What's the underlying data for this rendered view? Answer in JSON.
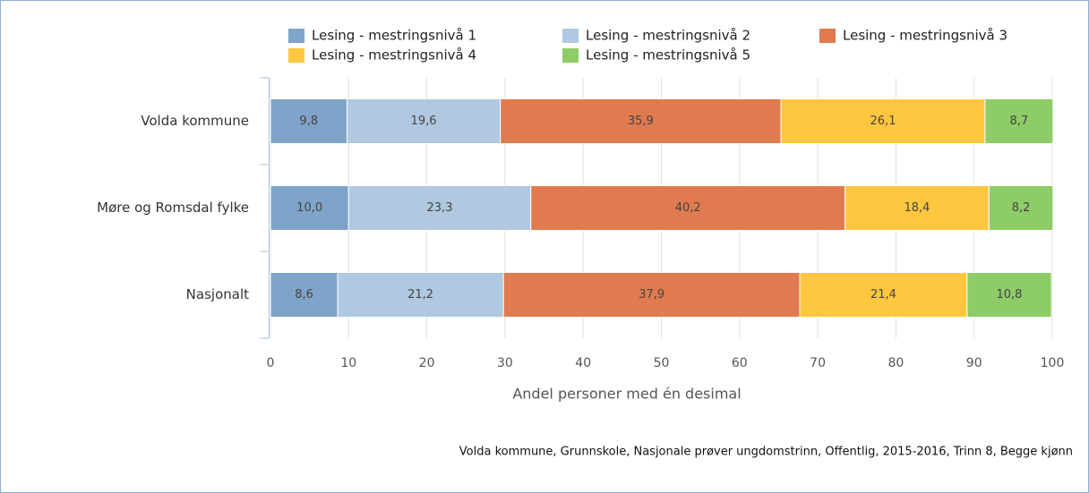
{
  "chart_data": {
    "type": "stacked-bar-horizontal",
    "categories": [
      "Volda kommune",
      "Møre og Romsdal fylke",
      "Nasjonalt"
    ],
    "series": [
      {
        "name": "Lesing - mestringsnivå 1",
        "color": "#7fa3c9",
        "values": [
          9.8,
          10.0,
          8.6
        ],
        "value_labels": [
          "9,8",
          "10,0",
          "8,6"
        ]
      },
      {
        "name": "Lesing - mestringsnivå 2",
        "color": "#b0c8e0",
        "values": [
          19.6,
          23.3,
          21.2
        ],
        "value_labels": [
          "19,6",
          "23,3",
          "21,2"
        ]
      },
      {
        "name": "Lesing - mestringsnivå 3",
        "color": "#e07b4f",
        "values": [
          35.9,
          40.2,
          37.9
        ],
        "value_labels": [
          "35,9",
          "40,2",
          "37,9"
        ]
      },
      {
        "name": "Lesing - mestringsnivå 4",
        "color": "#ffc63f",
        "values": [
          26.1,
          18.4,
          21.4
        ],
        "value_labels": [
          "26,1",
          "18,4",
          "21,4"
        ]
      },
      {
        "name": "Lesing - mestringsnivå 5",
        "color": "#8dcc66",
        "values": [
          8.7,
          8.2,
          10.8
        ],
        "value_labels": [
          "8,7",
          "8,2",
          "10,8"
        ]
      }
    ],
    "xlim": [
      0,
      100
    ],
    "xticks": [
      0,
      10,
      20,
      30,
      40,
      50,
      60,
      70,
      80,
      90,
      100
    ],
    "xlabel": "Andel personer med én desimal",
    "grid": true,
    "legend": "top",
    "note": "Volda kommune, Grunnskole, Nasjonale prøver ungdomstrinn, Offentlig, 2015-2016, Trinn 8, Begge kjønn"
  }
}
